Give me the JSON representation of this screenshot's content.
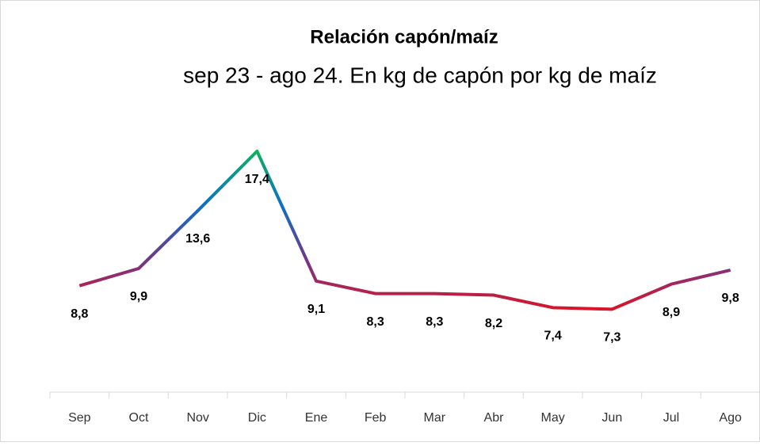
{
  "chart_data": {
    "type": "line",
    "title": "Relación capón/maíz",
    "subtitle": "sep  23 - ago 24. En kg de capón por kg de maíz",
    "categories": [
      "Sep",
      "Oct",
      "Nov",
      "Dic",
      "Ene",
      "Feb",
      "Mar",
      "Abr",
      "May",
      "Jun",
      "Jul",
      "Ago"
    ],
    "values": [
      8.8,
      9.9,
      13.6,
      17.4,
      9.1,
      8.3,
      8.3,
      8.2,
      7.4,
      7.3,
      8.9,
      9.8
    ],
    "value_labels": [
      "8,8",
      "9,9",
      "13,6",
      "17,4",
      "9,1",
      "8,3",
      "8,3",
      "8,2",
      "7,4",
      "7,3",
      "8,9",
      "9,8"
    ],
    "colors": [
      "#d8152a",
      "#6b3a8e",
      "#0a72c6",
      "#12b05e"
    ],
    "ylim": [
      2,
      18
    ]
  }
}
